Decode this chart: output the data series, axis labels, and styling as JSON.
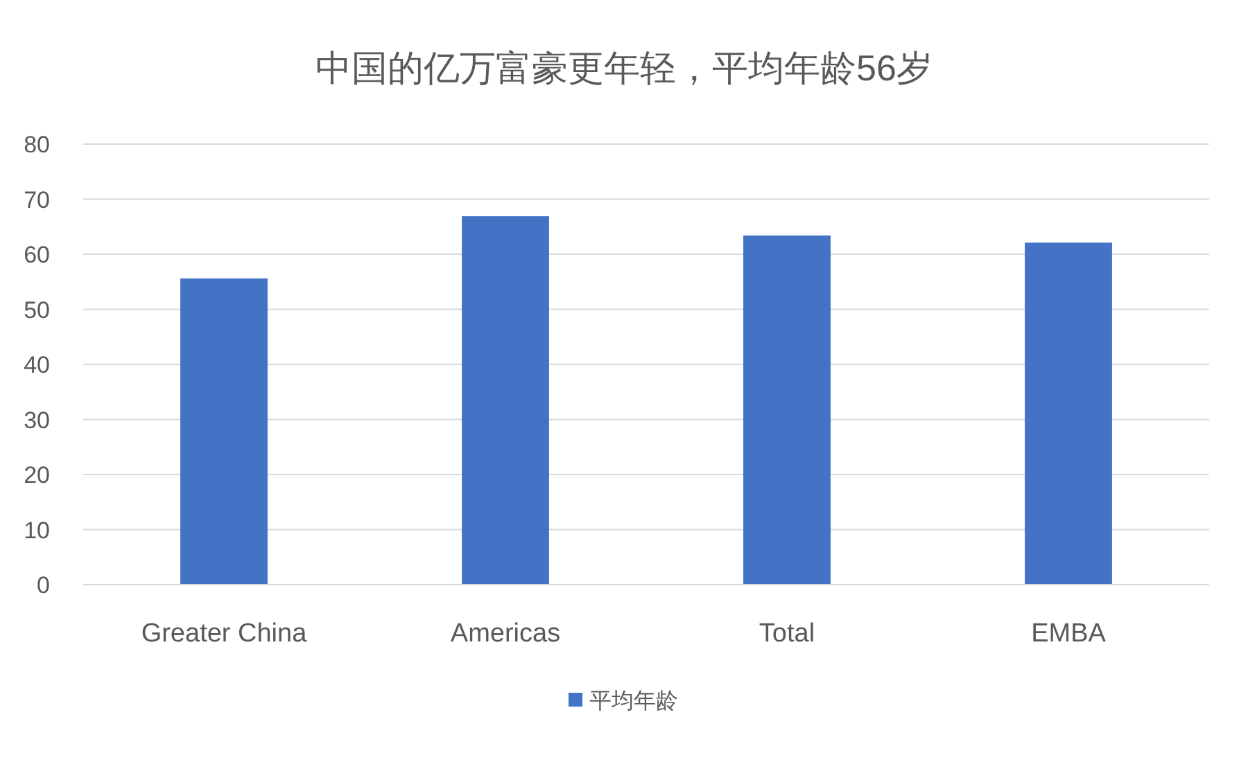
{
  "chart_data": {
    "type": "bar",
    "title": "中国的亿万富豪更年轻，平均年龄56岁",
    "categories": [
      "Greater China",
      "Americas",
      "Total",
      "EMBA"
    ],
    "series": [
      {
        "name": "平均年龄",
        "color": "#4472c4",
        "values": [
          55.6,
          66.9,
          63.4,
          62.1
        ]
      }
    ],
    "ylim": [
      0,
      80
    ],
    "yticks": [
      0,
      10,
      20,
      30,
      40,
      50,
      60,
      70,
      80
    ],
    "grid": "y",
    "legend": "bottom"
  }
}
